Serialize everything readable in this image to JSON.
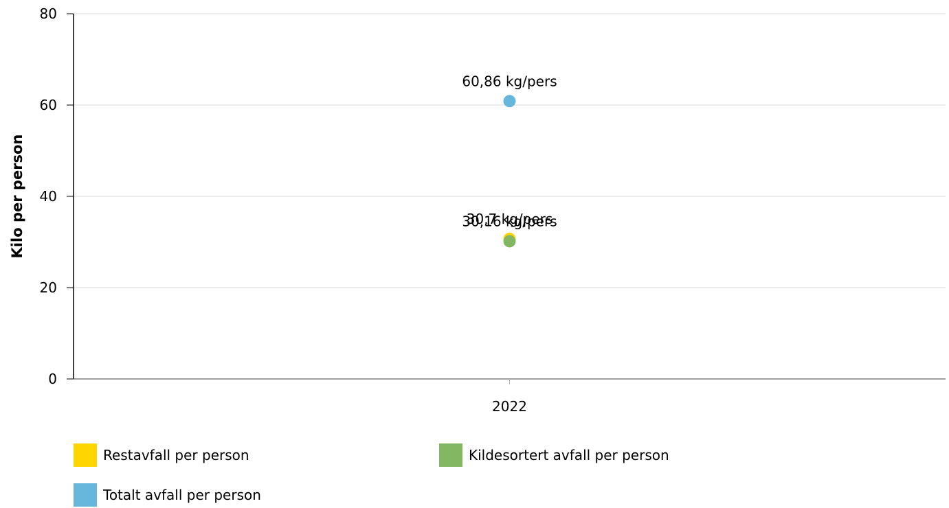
{
  "chart_data": {
    "type": "scatter",
    "categories": [
      "2022"
    ],
    "ylabel": "Kilo per person",
    "xlabel": "",
    "ylim": [
      0,
      80
    ],
    "y_ticks": [
      "0",
      "20",
      "40",
      "60",
      "80"
    ],
    "grid": true,
    "legend_position": "bottom",
    "series": [
      {
        "name": "Restavfall per person",
        "color": "#FFD500",
        "values": [
          30.7
        ],
        "labels": [
          "30,7 kg/pers"
        ]
      },
      {
        "name": "Kildesortert avfall per person",
        "color": "#84B761",
        "values": [
          30.16
        ],
        "labels": [
          "30,16 kg/pers"
        ]
      },
      {
        "name": "Totalt avfall per person",
        "color": "#67B7DC",
        "values": [
          60.86
        ],
        "labels": [
          "60,86 kg/pers"
        ]
      }
    ]
  }
}
